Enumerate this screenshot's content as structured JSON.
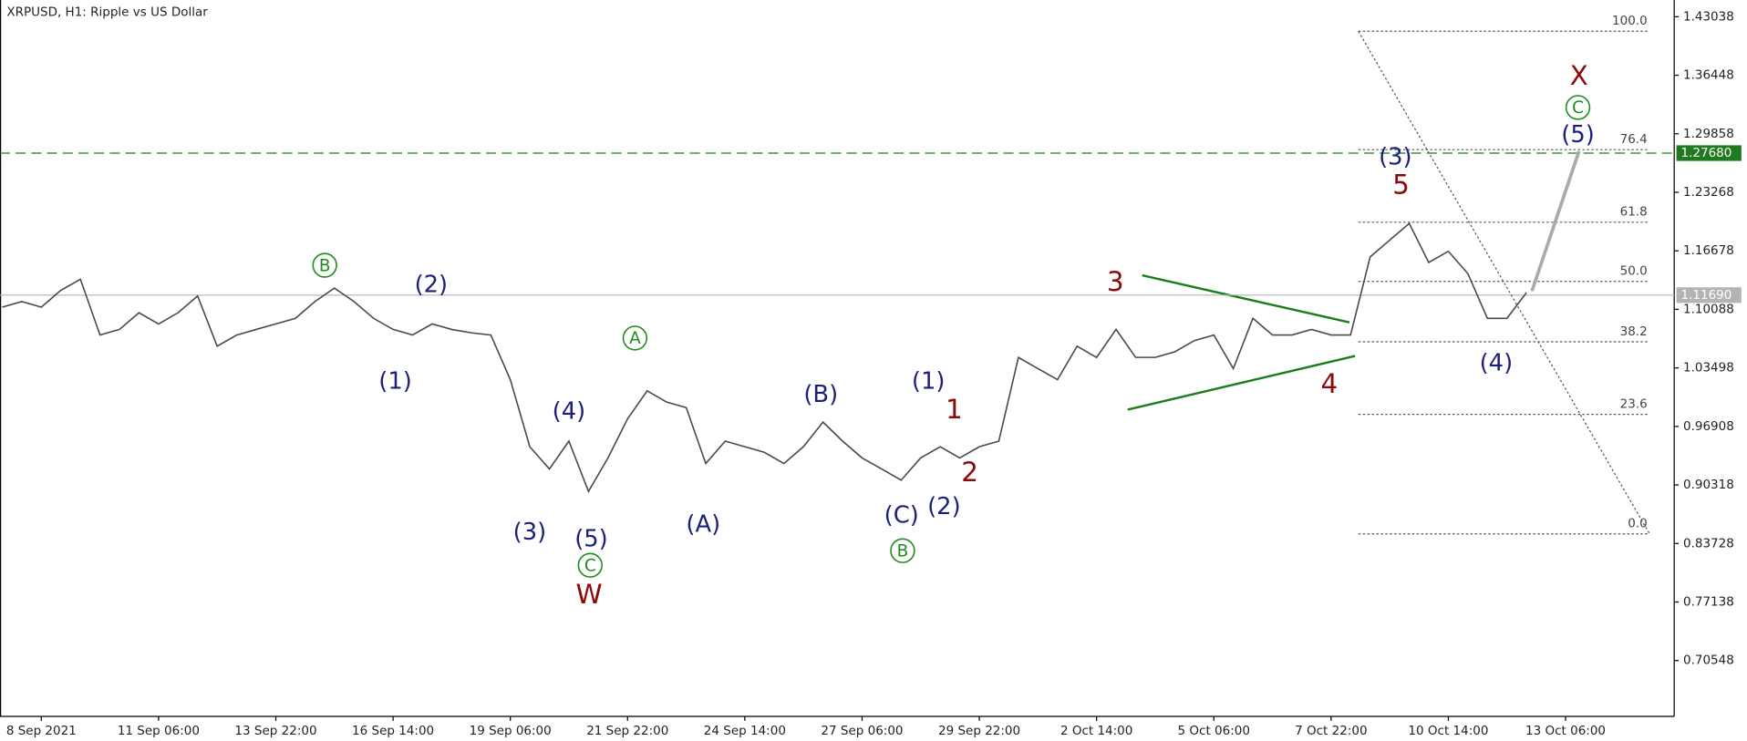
{
  "chart_data": {
    "type": "line",
    "title": "XRPUSD, H1:  Ripple vs US Dollar",
    "color": "#4a4a4a",
    "categories": [
      null,
      null,
      "8 Sep 2021",
      null,
      null,
      null,
      null,
      null,
      "11 Sep 06:00",
      null,
      null,
      null,
      null,
      null,
      "13 Sep 22:00",
      null,
      null,
      null,
      null,
      null,
      "16 Sep 14:00",
      null,
      null,
      null,
      null,
      null,
      "19 Sep 06:00",
      null,
      null,
      null,
      null,
      null,
      "21 Sep 22:00",
      null,
      null,
      null,
      null,
      null,
      "24 Sep 14:00",
      null,
      null,
      null,
      null,
      null,
      "27 Sep 06:00",
      null,
      null,
      null,
      null,
      null,
      "29 Sep 22:00",
      null,
      null,
      null,
      null,
      null,
      "2 Oct 14:00",
      null,
      null,
      null,
      null,
      null,
      "5 Oct 06:00",
      null,
      null,
      null,
      null,
      null,
      "7 Oct 22:00",
      null,
      null,
      null,
      null,
      null,
      "10 Oct 14:00",
      null,
      null,
      null,
      null,
      null,
      "13 Oct 06:00"
    ],
    "values": [
      1.1034,
      1.1097,
      1.1034,
      1.1223,
      1.1348,
      1.072,
      1.0783,
      1.0971,
      1.0845,
      1.0971,
      1.116,
      1.0594,
      1.072,
      1.0783,
      1.0845,
      1.0908,
      1.1097,
      1.1248,
      1.1097,
      1.0908,
      1.0783,
      1.072,
      1.0845,
      1.0783,
      1.0745,
      1.072,
      1.0217,
      0.9462,
      0.9211,
      0.9525,
      0.8959,
      0.9336,
      0.9776,
      1.0091,
      0.9965,
      0.9902,
      0.9273,
      0.9525,
      0.9462,
      0.9399,
      0.9273,
      0.9462,
      0.9739,
      0.9525,
      0.9336,
      0.9211,
      0.9085,
      0.9336,
      0.9462,
      0.9336,
      0.9462,
      0.9525,
      1.0468,
      1.0342,
      1.0217,
      1.0594,
      1.0468,
      1.0783,
      1.0468,
      1.0468,
      1.0531,
      1.0657,
      1.072,
      1.0342,
      1.0908,
      1.072,
      1.072,
      1.0783,
      1.072,
      1.072,
      1.16,
      1.1789,
      1.1977,
      1.1537,
      1.1663,
      1.1411,
      1.0908,
      1.0908,
      1.1198,
      null,
      null
    ],
    "ylim": [
      0.6426,
      1.4492
    ],
    "yticks": [
      1.43038,
      1.36448,
      1.29858,
      1.23268,
      1.16678,
      1.10088,
      1.03498,
      0.96908,
      0.90318,
      0.83728,
      0.77138,
      0.70548
    ],
    "price_lines": [
      {
        "value": 1.2768,
        "label": "1.27680",
        "color": "#1f7a1f",
        "style": "dashed"
      },
      {
        "value": 1.1169,
        "label": "1.11690",
        "color": "#b4b4b4",
        "style": "solid"
      }
    ],
    "fibonacci": [
      {
        "level": {
          "value": 100,
          "label": "100.0"
        },
        "price": 1.414
      },
      {
        "level": 76.4,
        "price": 1.2807
      },
      {
        "level": 61.8,
        "price": 1.199
      },
      {
        "level": {
          "value": 50,
          "label": "50.0"
        },
        "price": 1.1323
      },
      {
        "level": 38.2,
        "price": 1.0644
      },
      {
        "level": 23.6,
        "price": 0.9827
      },
      {
        "level": {
          "value": 0,
          "label": "0.0"
        },
        "price": 0.8481
      }
    ],
    "annotations": [
      {
        "text": "B",
        "color": "#1e8c1e",
        "circled": true
      },
      {
        "text": "(2)",
        "color": "#1c1f7a"
      },
      {
        "text": "(1)",
        "color": "#1c1f7a"
      },
      {
        "text": "A",
        "color": "#1e8c1e",
        "circled": true
      },
      {
        "text": "(4)",
        "color": "#1c1f7a"
      },
      {
        "text": "(3)",
        "color": "#1c1f7a"
      },
      {
        "text": "(5)",
        "color": "#1c1f7a"
      },
      {
        "text": "C",
        "color": "#1e8c1e",
        "circled": true
      },
      {
        "text": "W",
        "color": "#8b0a0a"
      },
      {
        "text": "(A)",
        "color": "#1c1f7a"
      },
      {
        "text": "(B)",
        "color": "#1c1f7a"
      },
      {
        "text": "(C)",
        "color": "#1c1f7a"
      },
      {
        "text": "B",
        "color": "#1e8c1e",
        "circled": true
      },
      {
        "text": "(1)",
        "color": "#1c1f7a"
      },
      {
        "text": "1",
        "color": "#8b0a0a"
      },
      {
        "text": "2",
        "color": "#8b0a0a"
      },
      {
        "text": "(2)",
        "color": "#1c1f7a"
      },
      {
        "text": "3",
        "color": "#8b0a0a"
      },
      {
        "text": "4",
        "color": "#8b0a0a"
      },
      {
        "text": "(3)",
        "color": "#1c1f7a"
      },
      {
        "text": "5",
        "color": "#8b0a0a"
      },
      {
        "text": "(4)",
        "color": "#1c1f7a"
      },
      {
        "text": "(5)",
        "color": "#1c1f7a"
      },
      {
        "text": "C",
        "color": "#1e8c1e",
        "circled": true
      },
      {
        "text": "X",
        "color": "#8b0a0a"
      }
    ]
  }
}
